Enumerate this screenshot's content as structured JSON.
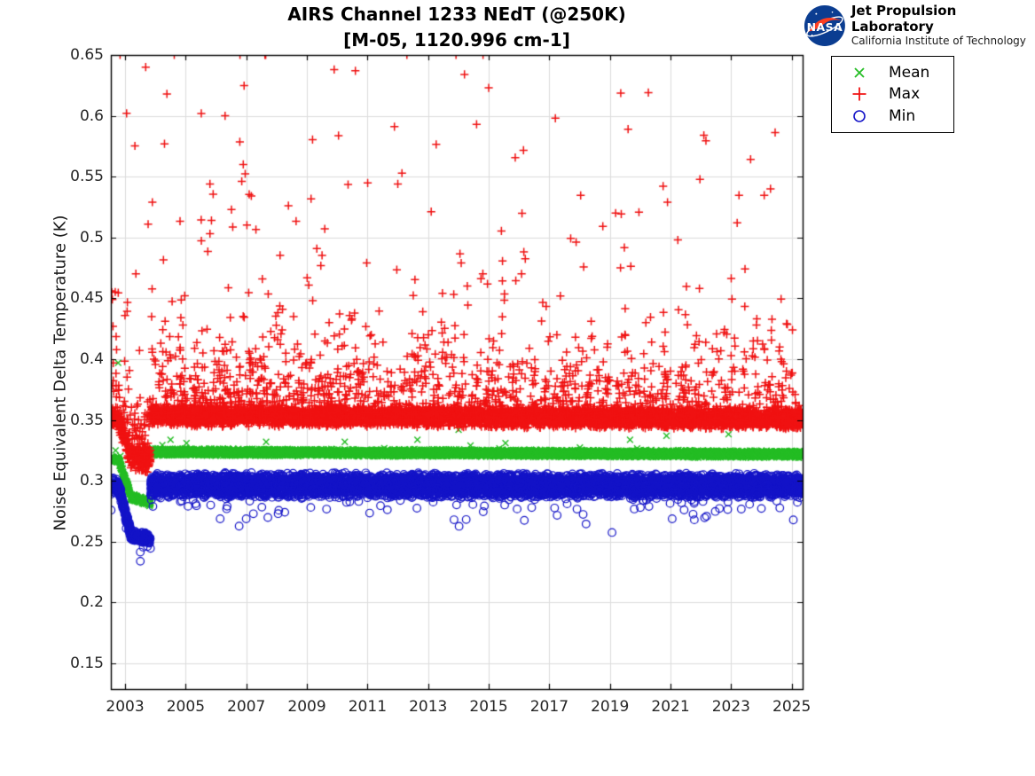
{
  "logo": {
    "nasa_text": "NASA",
    "org_name": "Jet Propulsion Laboratory",
    "org_sub": "California Institute of Technology"
  },
  "chart_data": {
    "type": "scatter",
    "title": "AIRS Channel 1233 NEdT (@250K)",
    "subtitle": "[M-05, 1120.996 cm-1]",
    "xlabel": "",
    "ylabel": "Noise Equivalent Delta Temperature (K)",
    "xlim": [
      2002.53,
      2025.36
    ],
    "ylim": [
      0.1288,
      0.65
    ],
    "xticks": [
      2003,
      2005,
      2007,
      2009,
      2011,
      2013,
      2015,
      2017,
      2019,
      2021,
      2023,
      2025
    ],
    "yticks": [
      0.15,
      0.2,
      0.25,
      0.3,
      0.35,
      0.4,
      0.45,
      0.5,
      0.55,
      0.6,
      0.65
    ],
    "grid": true,
    "grid_color": "#dcdcdc",
    "axis_color": "#000000",
    "legend_position": "outside-top-right",
    "seed": 20250413,
    "value_cap": 0.65,
    "series": [
      {
        "name": "Mean",
        "marker": "x",
        "color": "#24bd24",
        "marker_half": 3.4,
        "line_width": 1.4,
        "points_per_year": 340,
        "segments": [
          {
            "t0": 2002.53,
            "t1": 2002.78,
            "v0": 0.3175,
            "v1": 0.3175,
            "jitter": 0.003
          },
          {
            "t0": 2002.78,
            "t1": 2003.18,
            "v0": 0.3175,
            "v1": 0.2885,
            "jitter": 0.003
          },
          {
            "t0": 2003.18,
            "t1": 2003.84,
            "v0": 0.287,
            "v1": 0.2818,
            "jitter": 0.003
          },
          {
            "t0": 2003.84,
            "t1": 2025.36,
            "v0": 0.3237,
            "v1": 0.3218,
            "jitter": 0.0032
          }
        ],
        "tails": [
          {
            "dir": 1,
            "prob": 0.005,
            "scale": 0.004
          }
        ],
        "tail_time_decay": false,
        "explicit_outliers": [
          [
            2002.77,
            0.397
          ],
          [
            2010.25,
            0.332
          ],
          [
            2014.4,
            0.329
          ]
        ]
      },
      {
        "name": "Max",
        "marker": "+",
        "color": "#f01212",
        "marker_half": 4.6,
        "line_width": 1.5,
        "points_per_year": 340,
        "segments": [
          {
            "t0": 2002.53,
            "t1": 2002.78,
            "v0": 0.3505,
            "v1": 0.3505,
            "jitter": 0.0078
          },
          {
            "t0": 2002.78,
            "t1": 2003.18,
            "v0": 0.3495,
            "v1": 0.32,
            "jitter": 0.0095
          },
          {
            "t0": 2003.18,
            "t1": 2003.84,
            "v0": 0.318,
            "v1": 0.3175,
            "jitter": 0.0115
          },
          {
            "t0": 2003.84,
            "t1": 2025.36,
            "v0": 0.3535,
            "v1": 0.351,
            "jitter": 0.009
          }
        ],
        "tails": [
          {
            "dir": 1,
            "prob": 0.17,
            "scale": 0.022
          },
          {
            "dir": 1,
            "prob": 0.028,
            "scale": 0.075
          }
        ],
        "tail_time_decay": true,
        "explicit_outliers": [
          [
            2002.56,
            0.455
          ],
          [
            2002.58,
            0.449
          ],
          [
            2002.6,
            0.427
          ],
          [
            2003.05,
            0.602
          ],
          [
            2003.68,
            0.64
          ],
          [
            2003.9,
            0.529
          ],
          [
            2004.3,
            0.577
          ],
          [
            2004.38,
            0.618
          ],
          [
            2005.8,
            0.544
          ],
          [
            2005.85,
            0.514
          ],
          [
            2006.3,
            0.6
          ],
          [
            2006.9,
            0.56
          ],
          [
            2009.9,
            0.638
          ],
          [
            2010.6,
            0.637
          ],
          [
            2012.0,
            0.544
          ],
          [
            2012.3,
            0.65
          ],
          [
            2014.2,
            0.634
          ],
          [
            2014.6,
            0.593
          ],
          [
            2015.0,
            0.623
          ],
          [
            2017.2,
            0.598
          ],
          [
            2019.6,
            0.589
          ],
          [
            2020.9,
            0.529
          ],
          [
            2022.1,
            0.584
          ],
          [
            2023.2,
            0.512
          ],
          [
            2024.3,
            0.54
          ]
        ]
      },
      {
        "name": "Min",
        "marker": "o",
        "color": "#1414c8",
        "marker_half": 4.3,
        "line_width": 1.2,
        "points_per_year": 335,
        "segments": [
          {
            "t0": 2002.53,
            "t1": 2002.78,
            "v0": 0.2955,
            "v1": 0.295,
            "jitter": 0.0075
          },
          {
            "t0": 2002.78,
            "t1": 2003.18,
            "v0": 0.295,
            "v1": 0.2575,
            "jitter": 0.006
          },
          {
            "t0": 2003.18,
            "t1": 2003.84,
            "v0": 0.2545,
            "v1": 0.2525,
            "jitter": 0.0048
          },
          {
            "t0": 2003.84,
            "t1": 2025.36,
            "v0": 0.2965,
            "v1": 0.296,
            "jitter": 0.0105
          }
        ],
        "tails": [
          {
            "dir": -1,
            "prob": 0.05,
            "scale": 0.0065
          }
        ],
        "tail_time_decay": false,
        "explicit_outliers": [
          [
            2006.35,
            0.277
          ],
          [
            2008.05,
            0.273
          ]
        ]
      }
    ]
  }
}
